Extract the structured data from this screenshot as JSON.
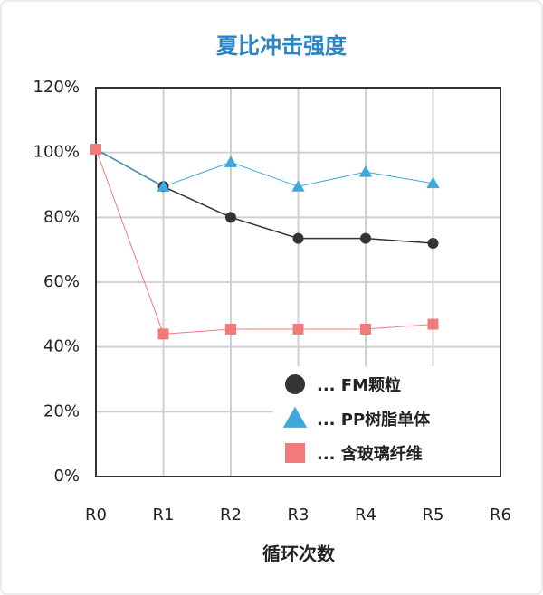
{
  "chart_data": {
    "type": "line",
    "title": "夏比冲击强度",
    "xlabel": "循环次数",
    "categories": [
      "R0",
      "R1",
      "R2",
      "R3",
      "R4",
      "R5",
      "R6"
    ],
    "series": [
      {
        "name": "... FM颗粒",
        "color": "#333333",
        "marker": "circle",
        "values": [
          101,
          89.5,
          80,
          73.5,
          73.5,
          72,
          null
        ]
      },
      {
        "name": "... PP树脂单体",
        "color": "#3ea8dc",
        "marker": "triangle",
        "values": [
          101,
          89.5,
          97,
          89.5,
          94,
          90.5,
          null
        ]
      },
      {
        "name": "... 含玻璃纤维",
        "color": "#f27a7a",
        "marker": "square",
        "values": [
          101,
          44,
          45.5,
          45.5,
          45.5,
          47,
          null
        ]
      }
    ],
    "ylim": [
      0,
      120
    ],
    "yticks": [
      {
        "value": 0,
        "label": "0%"
      },
      {
        "value": 20,
        "label": "20%"
      },
      {
        "value": 40,
        "label": "40%"
      },
      {
        "value": 60,
        "label": "60%"
      },
      {
        "value": 80,
        "label": "80%"
      },
      {
        "value": 100,
        "label": "100%"
      },
      {
        "value": 120,
        "label": "120%"
      }
    ],
    "grid": true,
    "legend": "lower right"
  }
}
